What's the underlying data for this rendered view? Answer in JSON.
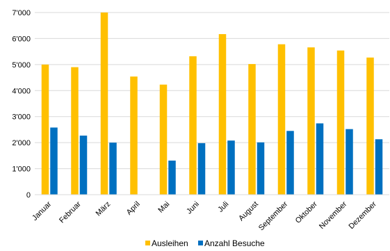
{
  "chart_data": {
    "type": "bar",
    "categories": [
      "Januar",
      "Februar",
      "März",
      "April",
      "Mai",
      "Juni",
      "Juli",
      "August",
      "September",
      "Oktober",
      "November",
      "Dezember"
    ],
    "series": [
      {
        "name": "Ausleihen",
        "color": "#FFC000",
        "values": [
          5000,
          4900,
          7000,
          4540,
          4230,
          5320,
          6170,
          5020,
          5780,
          5660,
          5540,
          5270
        ]
      },
      {
        "name": "Anzahl Besuche",
        "color": "#0070C0",
        "values": [
          2580,
          2270,
          2000,
          null,
          1310,
          1980,
          2080,
          2010,
          2450,
          2740,
          2520,
          2130
        ]
      }
    ],
    "y_ticks": [
      "0",
      "1'000",
      "2'000",
      "3'000",
      "4'000",
      "5'000",
      "6'000",
      "7'000"
    ],
    "ylim": [
      0,
      7000
    ],
    "grid": true,
    "legend_position": "bottom"
  }
}
